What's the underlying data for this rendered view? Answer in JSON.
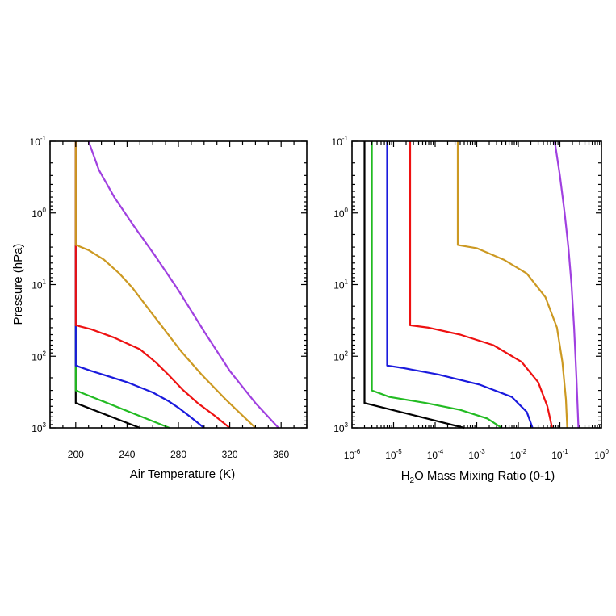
{
  "chart_data": [
    {
      "type": "line",
      "id": "temperature",
      "xlabel": "Air Temperature (K)",
      "ylabel": "Pressure (hPa)",
      "xlim": [
        180,
        380
      ],
      "xticks": [
        200,
        240,
        280,
        320,
        360
      ],
      "xtick_labels": [
        "200",
        "240",
        "280",
        "320",
        "360"
      ],
      "xscale": "linear",
      "ylim": [
        0.1,
        1000
      ],
      "yscale": "log",
      "yinvert": true,
      "yticks": [
        {
          "value": 0.1,
          "base": "10",
          "exp": "-1"
        },
        {
          "value": 1,
          "base": "10",
          "exp": "0"
        },
        {
          "value": 10,
          "base": "10",
          "exp": "1"
        },
        {
          "value": 100,
          "base": "10",
          "exp": "2"
        },
        {
          "value": 1000,
          "base": "10",
          "exp": "3"
        }
      ],
      "series": [
        {
          "name": "black",
          "color": "#000000",
          "x": [
            200,
            200,
            250
          ],
          "p": [
            0.1,
            450,
            1000
          ]
        },
        {
          "name": "green",
          "color": "#22bb22",
          "x": [
            200,
            200,
            273
          ],
          "p": [
            0.1,
            300,
            1000
          ]
        },
        {
          "name": "blue",
          "color": "#1a1add",
          "x": [
            200,
            200,
            212,
            240,
            260,
            272,
            281,
            290,
            300
          ],
          "p": [
            0.1,
            135,
            160,
            230,
            320,
            420,
            540,
            720,
            1000
          ]
        },
        {
          "name": "red",
          "color": "#ee1111",
          "x": [
            200,
            200,
            212,
            230,
            250,
            262,
            272,
            283,
            295,
            308,
            320
          ],
          "p": [
            0.1,
            37,
            42,
            55,
            80,
            120,
            180,
            290,
            450,
            670,
            1000
          ]
        },
        {
          "name": "gold",
          "color": "#cc9922",
          "x": [
            200,
            200,
            210,
            222,
            234,
            244,
            255,
            268,
            282,
            298,
            318,
            340
          ],
          "p": [
            0.1,
            2.8,
            3.3,
            4.5,
            7,
            11,
            20,
            40,
            85,
            180,
            420,
            1000
          ]
        },
        {
          "name": "purple",
          "color": "#a040e0",
          "x": [
            210,
            218,
            230,
            245,
            262,
            280,
            300,
            320,
            340,
            358
          ],
          "p": [
            0.1,
            0.25,
            0.6,
            1.5,
            4,
            12,
            45,
            160,
            450,
            1000
          ]
        }
      ]
    },
    {
      "type": "line",
      "id": "water",
      "xlabel_parts": [
        "H",
        "2",
        "O Mass Mixing Ratio (0-1)"
      ],
      "xlim": [
        1e-06,
        1
      ],
      "xscale": "log",
      "xticks": [
        {
          "value": 1e-06,
          "base": "10",
          "exp": "-6"
        },
        {
          "value": 1e-05,
          "base": "10",
          "exp": "-5"
        },
        {
          "value": 0.0001,
          "base": "10",
          "exp": "-4"
        },
        {
          "value": 0.001,
          "base": "10",
          "exp": "-3"
        },
        {
          "value": 0.01,
          "base": "10",
          "exp": "-2"
        },
        {
          "value": 0.1,
          "base": "10",
          "exp": "-1"
        },
        {
          "value": 1,
          "base": "10",
          "exp": "0"
        }
      ],
      "ylim": [
        0.1,
        1000
      ],
      "yscale": "log",
      "yinvert": true,
      "yticks": [
        {
          "value": 0.1,
          "base": "10",
          "exp": "-1"
        },
        {
          "value": 1,
          "base": "10",
          "exp": "0"
        },
        {
          "value": 10,
          "base": "10",
          "exp": "1"
        },
        {
          "value": 100,
          "base": "10",
          "exp": "2"
        },
        {
          "value": 1000,
          "base": "10",
          "exp": "3"
        }
      ],
      "series": [
        {
          "name": "black",
          "color": "#000000",
          "x": [
            2e-06,
            2e-06,
            0.0005
          ],
          "p": [
            0.1,
            450,
            1000
          ]
        },
        {
          "name": "green",
          "color": "#22bb22",
          "x": [
            3e-06,
            3e-06,
            8e-06,
            6e-05,
            0.0004,
            0.0018,
            0.004
          ],
          "p": [
            0.1,
            300,
            370,
            450,
            560,
            740,
            1000
          ]
        },
        {
          "name": "blue",
          "color": "#1a1add",
          "x": [
            7e-06,
            7e-06,
            1.6e-05,
            0.00012,
            0.0012,
            0.007,
            0.016,
            0.022
          ],
          "p": [
            0.1,
            135,
            145,
            180,
            250,
            370,
            600,
            1000
          ]
        },
        {
          "name": "red",
          "color": "#ee1111",
          "x": [
            2.5e-05,
            2.5e-05,
            7e-05,
            0.0004,
            0.0025,
            0.012,
            0.03,
            0.05,
            0.065
          ],
          "p": [
            0.1,
            37,
            40,
            50,
            70,
            120,
            230,
            500,
            1000
          ]
        },
        {
          "name": "gold",
          "color": "#cc9922",
          "x": [
            0.00035,
            0.00035,
            0.001,
            0.0045,
            0.016,
            0.045,
            0.085,
            0.115,
            0.14,
            0.15
          ],
          "p": [
            0.1,
            2.8,
            3.1,
            4.5,
            7,
            15,
            40,
            120,
            400,
            1000
          ]
        },
        {
          "name": "purple",
          "color": "#a040e0",
          "x": [
            0.075,
            0.1,
            0.13,
            0.16,
            0.19,
            0.22,
            0.25,
            0.28
          ],
          "p": [
            0.1,
            0.3,
            1,
            3,
            10,
            40,
            200,
            1000
          ]
        }
      ]
    }
  ]
}
